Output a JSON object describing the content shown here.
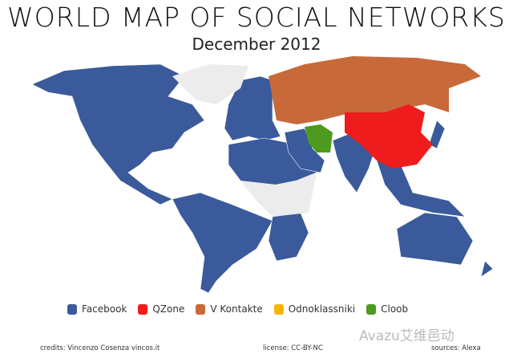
{
  "title": "WORLD MAP OF SOCIAL NETWORKS",
  "subtitle": "December 2012",
  "legend": [
    {
      "label": "Facebook",
      "color": "#3a5a9b"
    },
    {
      "label": "QZone",
      "color": "#ee1c1c"
    },
    {
      "label": "V Kontakte",
      "color": "#c8693a"
    },
    {
      "label": "Odnoklassniki",
      "color": "#f7b500"
    },
    {
      "label": "Cloob",
      "color": "#4e9a1e"
    }
  ],
  "no_data_color": "#ececec",
  "footer": {
    "credits": "credits: Vincenzo Cosenza vincos.it",
    "license": "license: CC-BY-NC",
    "sources": "sources: Alexa"
  },
  "watermark": "Avazu艾维邑动"
}
